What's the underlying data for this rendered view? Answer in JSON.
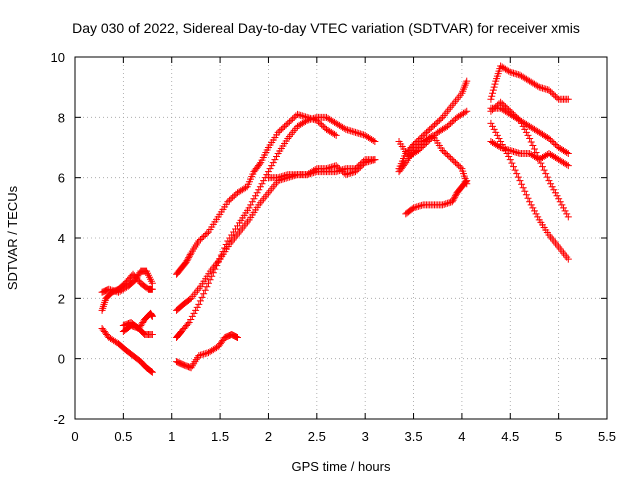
{
  "chart_data": {
    "type": "scatter",
    "title": "Day 030 of 2022, Sidereal Day-to-day VTEC variation (SDTVAR) for receiver xmis",
    "xlabel": "GPS time / hours",
    "ylabel": "SDTVAR / TECUs",
    "xlim": [
      0,
      5.5
    ],
    "ylim": [
      -2,
      10
    ],
    "xticks": [
      "0",
      "0.5",
      "1",
      "1.5",
      "2",
      "2.5",
      "3",
      "3.5",
      "4",
      "4.5",
      "5",
      "5.5"
    ],
    "yticks": [
      "-2",
      "0",
      "2",
      "4",
      "6",
      "8",
      "10"
    ],
    "grid": true,
    "marker": "plus",
    "color": "#ff0000",
    "tracks": [
      [
        [
          0.28,
          2.2
        ],
        [
          0.35,
          2.3
        ],
        [
          0.45,
          2.2
        ],
        [
          0.55,
          2.4
        ],
        [
          0.62,
          2.6
        ],
        [
          0.68,
          2.9
        ],
        [
          0.74,
          2.9
        ],
        [
          0.8,
          2.5
        ]
      ],
      [
        [
          0.28,
          1.6
        ],
        [
          0.32,
          2.0
        ],
        [
          0.38,
          2.2
        ],
        [
          0.45,
          2.3
        ],
        [
          0.52,
          2.5
        ],
        [
          0.6,
          2.8
        ],
        [
          0.68,
          2.5
        ],
        [
          0.76,
          2.3
        ],
        [
          0.8,
          2.3
        ]
      ],
      [
        [
          0.5,
          1.1
        ],
        [
          0.58,
          1.2
        ],
        [
          0.66,
          1.0
        ],
        [
          0.72,
          1.3
        ],
        [
          0.78,
          1.5
        ],
        [
          0.8,
          1.4
        ]
      ],
      [
        [
          0.5,
          0.9
        ],
        [
          0.58,
          1.1
        ],
        [
          0.66,
          1.0
        ],
        [
          0.72,
          0.8
        ],
        [
          0.8,
          0.8
        ]
      ],
      [
        [
          0.28,
          1.0
        ],
        [
          0.35,
          0.7
        ],
        [
          0.45,
          0.5
        ],
        [
          0.52,
          0.3
        ],
        [
          0.6,
          0.1
        ],
        [
          0.68,
          -0.1
        ],
        [
          0.74,
          -0.3
        ],
        [
          0.8,
          -0.45
        ]
      ],
      [
        [
          1.05,
          2.8
        ],
        [
          1.1,
          3.0
        ],
        [
          1.15,
          3.2
        ],
        [
          1.2,
          3.5
        ],
        [
          1.28,
          3.9
        ],
        [
          1.38,
          4.2
        ],
        [
          1.48,
          4.7
        ],
        [
          1.58,
          5.2
        ],
        [
          1.68,
          5.5
        ],
        [
          1.78,
          5.7
        ],
        [
          1.85,
          6.2
        ],
        [
          1.92,
          6.5
        ],
        [
          2.0,
          7.0
        ],
        [
          2.1,
          7.5
        ],
        [
          2.2,
          7.8
        ],
        [
          2.3,
          8.1
        ],
        [
          2.4,
          8.0
        ],
        [
          2.5,
          7.9
        ],
        [
          2.6,
          7.6
        ],
        [
          2.7,
          7.4
        ]
      ],
      [
        [
          1.05,
          0.7
        ],
        [
          1.1,
          0.9
        ],
        [
          1.18,
          1.2
        ],
        [
          1.28,
          1.8
        ],
        [
          1.38,
          2.5
        ],
        [
          1.48,
          3.2
        ],
        [
          1.58,
          3.9
        ],
        [
          1.7,
          4.5
        ],
        [
          1.8,
          5.0
        ],
        [
          1.9,
          5.6
        ],
        [
          2.0,
          6.2
        ],
        [
          2.1,
          6.8
        ],
        [
          2.2,
          7.3
        ],
        [
          2.3,
          7.7
        ],
        [
          2.4,
          7.9
        ],
        [
          2.5,
          8.0
        ],
        [
          2.6,
          8.0
        ],
        [
          2.7,
          7.8
        ],
        [
          2.8,
          7.6
        ],
        [
          2.9,
          7.5
        ],
        [
          3.0,
          7.4
        ],
        [
          3.1,
          7.2
        ]
      ],
      [
        [
          1.05,
          1.6
        ],
        [
          1.12,
          1.8
        ],
        [
          1.2,
          2.0
        ],
        [
          1.3,
          2.4
        ],
        [
          1.4,
          2.9
        ],
        [
          1.5,
          3.3
        ],
        [
          1.6,
          3.8
        ],
        [
          1.7,
          4.2
        ],
        [
          1.8,
          4.6
        ],
        [
          1.9,
          5.1
        ],
        [
          2.0,
          5.5
        ],
        [
          2.1,
          5.9
        ],
        [
          2.2,
          6.0
        ],
        [
          2.3,
          6.1
        ],
        [
          2.4,
          6.1
        ],
        [
          2.5,
          6.2
        ],
        [
          2.6,
          6.2
        ],
        [
          2.7,
          6.2
        ],
        [
          2.8,
          6.3
        ],
        [
          2.9,
          6.3
        ],
        [
          3.0,
          6.6
        ],
        [
          3.1,
          6.6
        ]
      ],
      [
        [
          1.05,
          -0.1
        ],
        [
          1.12,
          -0.2
        ],
        [
          1.2,
          -0.3
        ],
        [
          1.28,
          0.1
        ],
        [
          1.38,
          0.2
        ],
        [
          1.48,
          0.4
        ],
        [
          1.55,
          0.7
        ],
        [
          1.62,
          0.8
        ],
        [
          1.68,
          0.7
        ]
      ],
      [
        [
          2.0,
          6.0
        ],
        [
          2.1,
          6.0
        ],
        [
          2.2,
          6.1
        ],
        [
          2.3,
          6.1
        ],
        [
          2.4,
          6.1
        ],
        [
          2.5,
          6.3
        ],
        [
          2.6,
          6.3
        ],
        [
          2.7,
          6.4
        ],
        [
          2.8,
          6.1
        ],
        [
          2.9,
          6.2
        ],
        [
          3.0,
          6.5
        ],
        [
          3.1,
          6.6
        ]
      ],
      [
        [
          3.35,
          6.3
        ],
        [
          3.42,
          6.8
        ],
        [
          3.5,
          7.1
        ],
        [
          3.6,
          7.4
        ],
        [
          3.7,
          7.7
        ],
        [
          3.8,
          8.0
        ],
        [
          3.9,
          8.4
        ],
        [
          4.0,
          8.8
        ],
        [
          4.05,
          9.2
        ]
      ],
      [
        [
          3.35,
          7.2
        ],
        [
          3.45,
          6.7
        ],
        [
          3.55,
          6.9
        ],
        [
          3.65,
          7.2
        ],
        [
          3.75,
          7.5
        ],
        [
          3.85,
          7.7
        ],
        [
          3.95,
          8.0
        ],
        [
          4.05,
          8.2
        ]
      ],
      [
        [
          3.35,
          6.2
        ],
        [
          3.42,
          6.5
        ],
        [
          3.5,
          6.9
        ],
        [
          3.6,
          7.2
        ],
        [
          3.7,
          7.4
        ],
        [
          3.8,
          6.9
        ],
        [
          3.9,
          6.6
        ],
        [
          4.0,
          6.3
        ],
        [
          4.05,
          5.8
        ]
      ],
      [
        [
          3.42,
          4.8
        ],
        [
          3.5,
          5.0
        ],
        [
          3.6,
          5.1
        ],
        [
          3.7,
          5.1
        ],
        [
          3.8,
          5.1
        ],
        [
          3.9,
          5.2
        ],
        [
          3.95,
          5.5
        ],
        [
          4.0,
          5.7
        ],
        [
          4.05,
          5.9
        ]
      ],
      [
        [
          4.3,
          8.6
        ],
        [
          4.35,
          9.2
        ],
        [
          4.4,
          9.7
        ],
        [
          4.5,
          9.5
        ],
        [
          4.6,
          9.4
        ],
        [
          4.7,
          9.2
        ],
        [
          4.8,
          9.0
        ],
        [
          4.9,
          8.9
        ],
        [
          5.0,
          8.6
        ],
        [
          5.1,
          8.6
        ]
      ],
      [
        [
          4.3,
          8.3
        ],
        [
          4.4,
          8.3
        ],
        [
          4.5,
          8.1
        ],
        [
          4.6,
          7.9
        ],
        [
          4.7,
          7.7
        ],
        [
          4.8,
          7.5
        ],
        [
          4.9,
          7.3
        ],
        [
          5.0,
          7.0
        ],
        [
          5.1,
          6.8
        ]
      ],
      [
        [
          4.3,
          8.2
        ],
        [
          4.4,
          8.5
        ],
        [
          4.5,
          8.2
        ],
        [
          4.6,
          7.9
        ],
        [
          4.7,
          7.3
        ],
        [
          4.8,
          6.6
        ],
        [
          4.9,
          5.9
        ],
        [
          5.0,
          5.3
        ],
        [
          5.1,
          4.7
        ]
      ],
      [
        [
          4.3,
          7.2
        ],
        [
          4.4,
          7.0
        ],
        [
          4.5,
          6.9
        ],
        [
          4.6,
          6.8
        ],
        [
          4.7,
          6.8
        ],
        [
          4.8,
          6.6
        ],
        [
          4.9,
          6.8
        ],
        [
          5.0,
          6.6
        ],
        [
          5.1,
          6.4
        ]
      ],
      [
        [
          4.3,
          7.8
        ],
        [
          4.4,
          7.2
        ],
        [
          4.5,
          6.6
        ],
        [
          4.6,
          5.9
        ],
        [
          4.7,
          5.2
        ],
        [
          4.8,
          4.6
        ],
        [
          4.9,
          4.1
        ],
        [
          5.0,
          3.7
        ],
        [
          5.1,
          3.3
        ]
      ]
    ]
  }
}
